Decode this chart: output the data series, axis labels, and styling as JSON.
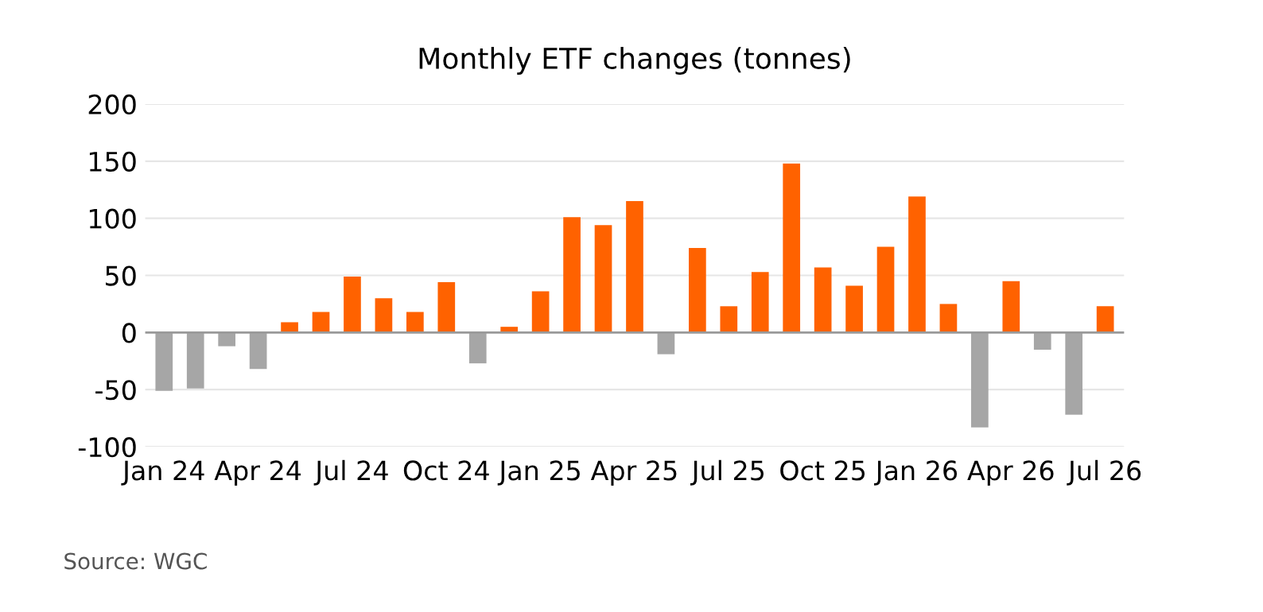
{
  "chart_data": {
    "type": "bar",
    "title": "Monthly ETF changes (tonnes)",
    "categories": [
      "Jan 24",
      null,
      null,
      "Apr 24",
      null,
      null,
      "Jul 24",
      null,
      null,
      "Oct 24",
      null,
      null,
      "Jan 25",
      null,
      null,
      "Apr 25",
      null,
      null,
      "Jul 25",
      null,
      null,
      "Oct 25",
      null,
      null,
      "Jan 26",
      null,
      null,
      "Apr 26",
      null,
      null,
      "Jul 26"
    ],
    "values": [
      -51,
      -49,
      -12,
      -32,
      9,
      18,
      49,
      30,
      18,
      44,
      -27,
      5,
      36,
      101,
      94,
      115,
      -19,
      74,
      23,
      53,
      148,
      57,
      41,
      75,
      119,
      25,
      -83,
      45,
      -15,
      -72,
      23
    ],
    "colors": [
      "#a6a6a6",
      "#a6a6a6",
      "#a6a6a6",
      "#a6a6a6",
      "#ff6200",
      "#ff6200",
      "#ff6200",
      "#ff6200",
      "#ff6200",
      "#ff6200",
      "#a6a6a6",
      "#ff6200",
      "#ff6200",
      "#ff6200",
      "#ff6200",
      "#ff6200",
      "#a6a6a6",
      "#ff6200",
      "#ff6200",
      "#ff6200",
      "#ff6200",
      "#ff6200",
      "#ff6200",
      "#ff6200",
      "#ff6200",
      "#ff6200",
      "#a6a6a6",
      "#ff6200",
      "#a6a6a6",
      "#a6a6a6",
      "#ff6200"
    ],
    "ylim": [
      -100,
      200
    ],
    "yticks": [
      -100,
      -50,
      0,
      50,
      100,
      150,
      200
    ],
    "grid": "y",
    "legend": false,
    "annotations": [
      "Source: WGC"
    ]
  }
}
